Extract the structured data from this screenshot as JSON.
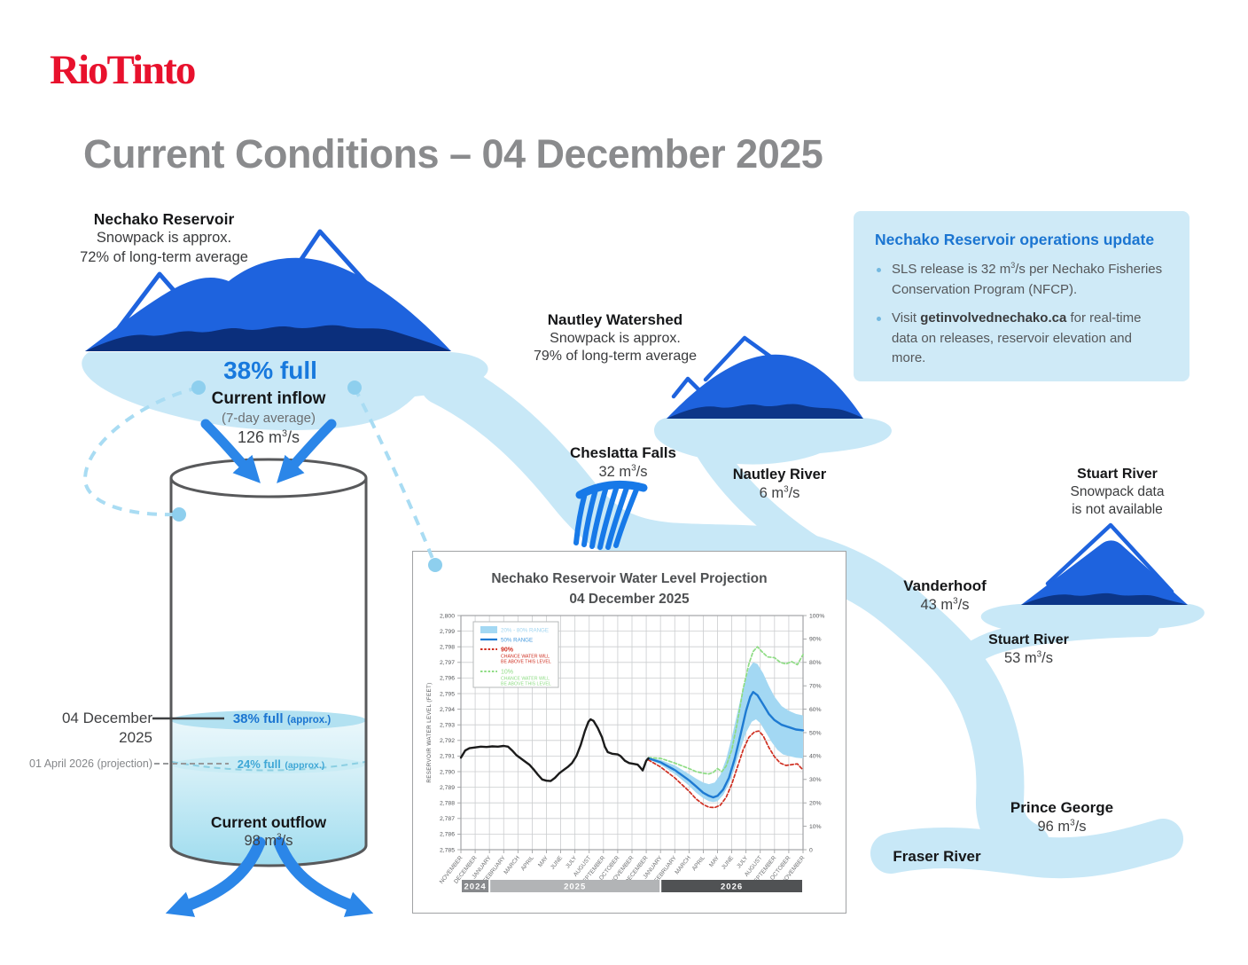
{
  "brand": {
    "logo": "RioTinto",
    "color": "#e8112d"
  },
  "header": {
    "title": "Current Conditions – 04 December 2025"
  },
  "units": {
    "base": "m",
    "sup": "3",
    "per": "/s"
  },
  "palette": {
    "mountain_blue": "#1e63de",
    "mountain_base": "#0b2f7c",
    "river_light": "#c8e8f7",
    "bright_blue": "#2b86e8",
    "rio_red": "#e8112d",
    "ops_bg": "#cfeaf7",
    "link_blue": "#1b75d1"
  },
  "nechako": {
    "name": "Nechako Reservoir",
    "snow1": "Snowpack is approx.",
    "snow2": "72% of long-term average",
    "full": "38% full"
  },
  "inflow": {
    "label": "Current inflow",
    "sub": "(7-day average)",
    "value": "126"
  },
  "tank": {
    "date_now": "04 December 2025",
    "now_level": "38% full",
    "now_approx": "(approx.)",
    "date_proj": "01 April 2026 (projection)",
    "proj_level": "24% full",
    "proj_approx": "(approx.)",
    "outflow_label": "Current outflow",
    "outflow_value": "98"
  },
  "nautley": {
    "name": "Nautley Watershed",
    "snow1": "Snowpack is approx.",
    "snow2": "79% of long-term average"
  },
  "stuart_watershed": {
    "name": "Stuart River",
    "line1": "Snowpack data",
    "line2": "is not available"
  },
  "stations": {
    "cheslatta": {
      "name": "Cheslatta Falls",
      "flow": "32"
    },
    "nautley_river": {
      "name": "Nautley River",
      "flow": "6"
    },
    "vanderhoof": {
      "name": "Vanderhoof",
      "flow": "43"
    },
    "stuart_river": {
      "name": "Stuart River",
      "flow": "53"
    },
    "prince_george": {
      "name": "Prince George",
      "flow": "96"
    },
    "fraser_river": {
      "name": "Fraser River"
    }
  },
  "ops_box": {
    "title": "Nechako Reservoir operations update",
    "bullet1": {
      "pre": "SLS release is 32 m",
      "sup": "3",
      "post": "/s per Nechako Fisheries Conservation Program (NFCP)."
    },
    "bullet2": {
      "pre": "Visit ",
      "link": "getinvolvednechako.ca",
      "post": " for real-time data on releases, reservoir elevation and more."
    }
  },
  "chart_data": {
    "type": "line",
    "title": "Nechako Reservoir Water Level Projection",
    "subtitle": "04 December 2025",
    "ylabel": "RESERVOIR WATER LEVEL (FEET)",
    "ylim": [
      2785,
      2800
    ],
    "x_unit": "months since Nov 2024",
    "grid": true,
    "right_ticks": [
      "100%",
      "90%",
      "80%",
      "70%",
      "60%",
      "50%",
      "40%",
      "30%",
      "20%",
      "10%",
      "0"
    ],
    "months": [
      "NOVEMBER",
      "DECEMBER",
      "JANUARY",
      "FEBRUARY",
      "MARCH",
      "APRIL",
      "MAY",
      "JUNE",
      "JULY",
      "AUGUST",
      "SEPTEMBER",
      "OCTOBER",
      "NOVEMBER",
      "DECEMBER",
      "JANUARY",
      "FEBRUARY",
      "MARCH",
      "APRIL",
      "MAY",
      "JUNE",
      "JULY",
      "AUGUST",
      "SEPTEMBER",
      "OCTOBER",
      "NOVEMBER"
    ],
    "year_bands": [
      {
        "label": "2024",
        "from": 0,
        "to": 2,
        "color": "#87898c"
      },
      {
        "label": "2025",
        "from": 2,
        "to": 14,
        "color": "#b2b4b6"
      },
      {
        "label": "2026",
        "from": 14,
        "to": 24,
        "color": "#505254"
      }
    ],
    "legend": [
      {
        "swatch": "band",
        "color": "#a3d8f3",
        "text_color": "#9fd4f0",
        "lines": [
          "20% - 80% RANGE"
        ]
      },
      {
        "swatch": "line",
        "color": "#1e7ad2",
        "text_color": "#459ade",
        "lines": [
          "50% RANGE"
        ]
      },
      {
        "swatch": "dash",
        "color": "#cf2f21",
        "text_color": "#cf2f21",
        "lines": [
          "90%",
          "CHANCE WATER WILL",
          "BE ABOVE THIS LEVEL"
        ]
      },
      {
        "swatch": "dash",
        "color": "#8edc84",
        "text_color": "#8edc84",
        "lines": [
          "10%",
          "CHANCE WATER WILL",
          "BE ABOVE THIS LEVEL"
        ]
      }
    ],
    "series": {
      "history": {
        "name": "Observed water level",
        "color": "#1b1b1b",
        "points": [
          [
            0,
            2790.9
          ],
          [
            0.3,
            2791.35
          ],
          [
            0.6,
            2791.5
          ],
          [
            1,
            2791.55
          ],
          [
            1.4,
            2791.6
          ],
          [
            1.8,
            2791.58
          ],
          [
            2.2,
            2791.62
          ],
          [
            2.6,
            2791.6
          ],
          [
            3,
            2791.65
          ],
          [
            3.3,
            2791.6
          ],
          [
            3.6,
            2791.35
          ],
          [
            3.9,
            2791.05
          ],
          [
            4.2,
            2790.85
          ],
          [
            4.5,
            2790.65
          ],
          [
            4.8,
            2790.45
          ],
          [
            5.1,
            2790.15
          ],
          [
            5.4,
            2789.8
          ],
          [
            5.7,
            2789.5
          ],
          [
            6,
            2789.42
          ],
          [
            6.3,
            2789.4
          ],
          [
            6.6,
            2789.6
          ],
          [
            6.9,
            2789.9
          ],
          [
            7.2,
            2790.1
          ],
          [
            7.5,
            2790.3
          ],
          [
            7.8,
            2790.55
          ],
          [
            8.1,
            2791.0
          ],
          [
            8.4,
            2791.7
          ],
          [
            8.7,
            2792.6
          ],
          [
            8.95,
            2793.2
          ],
          [
            9.1,
            2793.35
          ],
          [
            9.3,
            2793.25
          ],
          [
            9.6,
            2792.8
          ],
          [
            9.9,
            2792.2
          ],
          [
            10.1,
            2791.6
          ],
          [
            10.3,
            2791.25
          ],
          [
            10.6,
            2791.15
          ],
          [
            11,
            2791.1
          ],
          [
            11.2,
            2791.0
          ],
          [
            11.5,
            2790.7
          ],
          [
            11.8,
            2790.55
          ],
          [
            12.1,
            2790.5
          ],
          [
            12.4,
            2790.45
          ],
          [
            12.6,
            2790.25
          ],
          [
            12.75,
            2790.08
          ],
          [
            12.9,
            2790.45
          ],
          [
            13,
            2790.7
          ],
          [
            13.15,
            2790.85
          ]
        ]
      },
      "p50": {
        "name": "50% RANGE",
        "color": "#1e7ad2",
        "points": [
          [
            13.15,
            2790.85
          ],
          [
            14,
            2790.6
          ],
          [
            15,
            2790.1
          ],
          [
            16,
            2789.45
          ],
          [
            16.5,
            2789.05
          ],
          [
            17,
            2788.65
          ],
          [
            17.4,
            2788.45
          ],
          [
            17.7,
            2788.35
          ],
          [
            18,
            2788.45
          ],
          [
            18.4,
            2788.85
          ],
          [
            18.8,
            2789.6
          ],
          [
            19.2,
            2790.8
          ],
          [
            19.6,
            2792.3
          ],
          [
            20,
            2793.9
          ],
          [
            20.3,
            2794.8
          ],
          [
            20.5,
            2795.1
          ],
          [
            20.8,
            2794.9
          ],
          [
            21.2,
            2794.3
          ],
          [
            21.6,
            2793.7
          ],
          [
            22,
            2793.3
          ],
          [
            22.5,
            2793.0
          ],
          [
            23,
            2792.85
          ],
          [
            23.5,
            2792.7
          ],
          [
            24,
            2792.65
          ]
        ]
      },
      "band": {
        "name": "20% - 80% RANGE",
        "color": "#a3d8f3",
        "upper": [
          [
            13.15,
            2790.9
          ],
          [
            14,
            2790.75
          ],
          [
            15,
            2790.4
          ],
          [
            16,
            2789.85
          ],
          [
            16.5,
            2789.55
          ],
          [
            17,
            2789.3
          ],
          [
            17.4,
            2789.2
          ],
          [
            17.8,
            2789.3
          ],
          [
            18.2,
            2789.8
          ],
          [
            18.6,
            2790.8
          ],
          [
            19,
            2792.2
          ],
          [
            19.4,
            2793.8
          ],
          [
            19.8,
            2795.4
          ],
          [
            20.2,
            2796.6
          ],
          [
            20.5,
            2797.0
          ],
          [
            20.8,
            2796.9
          ],
          [
            21.2,
            2796.3
          ],
          [
            21.6,
            2795.5
          ],
          [
            22,
            2794.8
          ],
          [
            22.5,
            2794.2
          ],
          [
            23,
            2793.9
          ],
          [
            23.5,
            2793.7
          ],
          [
            24,
            2793.6
          ]
        ],
        "lower": [
          [
            13.15,
            2790.8
          ],
          [
            14,
            2790.45
          ],
          [
            15,
            2789.85
          ],
          [
            16,
            2789.1
          ],
          [
            16.5,
            2788.65
          ],
          [
            17,
            2788.3
          ],
          [
            17.4,
            2788.1
          ],
          [
            17.7,
            2788.05
          ],
          [
            18,
            2788.1
          ],
          [
            18.4,
            2788.5
          ],
          [
            18.8,
            2789.2
          ],
          [
            19.2,
            2790.2
          ],
          [
            19.6,
            2791.4
          ],
          [
            20,
            2792.5
          ],
          [
            20.4,
            2793.2
          ],
          [
            20.7,
            2793.35
          ],
          [
            21,
            2793.1
          ],
          [
            21.4,
            2792.5
          ],
          [
            21.8,
            2791.9
          ],
          [
            22.2,
            2791.4
          ],
          [
            22.6,
            2791.1
          ],
          [
            23,
            2791.0
          ],
          [
            23.5,
            2790.9
          ],
          [
            24,
            2790.85
          ]
        ]
      },
      "p90": {
        "name": "90% CHANCE WATER WILL BE ABOVE THIS LEVEL",
        "color": "#cf2f21",
        "points": [
          [
            13.15,
            2790.75
          ],
          [
            14,
            2790.3
          ],
          [
            15,
            2789.6
          ],
          [
            16,
            2788.75
          ],
          [
            16.5,
            2788.25
          ],
          [
            17,
            2787.9
          ],
          [
            17.4,
            2787.72
          ],
          [
            17.8,
            2787.7
          ],
          [
            18.2,
            2787.85
          ],
          [
            18.6,
            2788.35
          ],
          [
            19,
            2789.2
          ],
          [
            19.4,
            2790.3
          ],
          [
            19.8,
            2791.4
          ],
          [
            20.2,
            2792.2
          ],
          [
            20.6,
            2792.55
          ],
          [
            20.9,
            2792.6
          ],
          [
            21.2,
            2792.3
          ],
          [
            21.6,
            2791.55
          ],
          [
            22,
            2790.95
          ],
          [
            22.4,
            2790.55
          ],
          [
            22.8,
            2790.4
          ],
          [
            23.2,
            2790.45
          ],
          [
            23.6,
            2790.5
          ],
          [
            24,
            2790.1
          ]
        ]
      },
      "p10": {
        "name": "10% CHANCE WATER WILL BE ABOVE THIS LEVEL",
        "color": "#8edc84",
        "points": [
          [
            13.15,
            2790.9
          ],
          [
            14,
            2790.85
          ],
          [
            15,
            2790.55
          ],
          [
            16,
            2790.2
          ],
          [
            16.5,
            2790.0
          ],
          [
            17,
            2789.9
          ],
          [
            17.4,
            2789.85
          ],
          [
            17.7,
            2789.95
          ],
          [
            18,
            2790.2
          ],
          [
            18.3,
            2790.0
          ],
          [
            18.6,
            2790.35
          ],
          [
            19,
            2791.4
          ],
          [
            19.4,
            2793.2
          ],
          [
            19.8,
            2795.3
          ],
          [
            20.2,
            2796.9
          ],
          [
            20.5,
            2797.7
          ],
          [
            20.8,
            2798.0
          ],
          [
            21.1,
            2797.7
          ],
          [
            21.5,
            2797.35
          ],
          [
            22,
            2797.3
          ],
          [
            22.4,
            2797.0
          ],
          [
            22.8,
            2796.9
          ],
          [
            23.2,
            2797.05
          ],
          [
            23.6,
            2796.85
          ],
          [
            24,
            2797.5
          ]
        ]
      }
    }
  }
}
